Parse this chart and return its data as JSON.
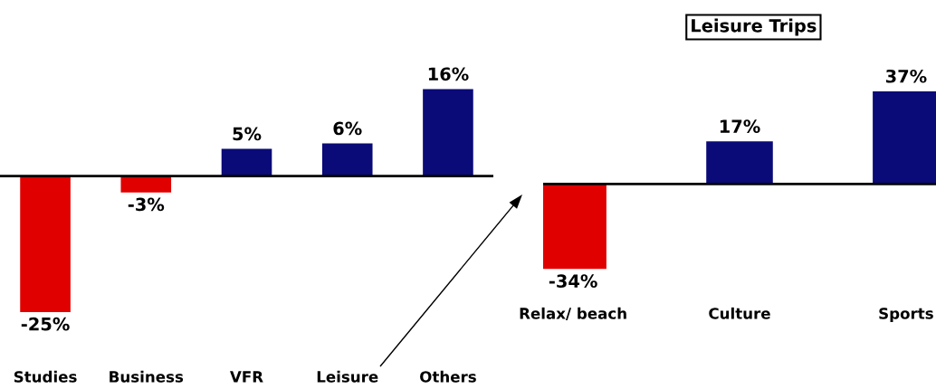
{
  "chart_data": [
    {
      "type": "bar",
      "categories": [
        "Studies",
        "Business",
        "VFR",
        "Leisure",
        "Others"
      ],
      "values": [
        -25,
        -3,
        5,
        6,
        16
      ],
      "colors": [
        "#e00000",
        "#e00000",
        "#0a0a78",
        "#0a0a78",
        "#0a0a78"
      ],
      "value_labels": [
        "-25%",
        "-3%",
        "5%",
        "6%",
        "16%"
      ]
    },
    {
      "type": "bar",
      "title": "Leisure Trips",
      "categories": [
        "Relax/ beach",
        "Culture",
        "Sports"
      ],
      "values": [
        -34,
        17,
        37
      ],
      "colors": [
        "#e00000",
        "#0a0a78",
        "#0a0a78"
      ],
      "value_labels": [
        "-34%",
        "17%",
        "37%"
      ]
    }
  ]
}
